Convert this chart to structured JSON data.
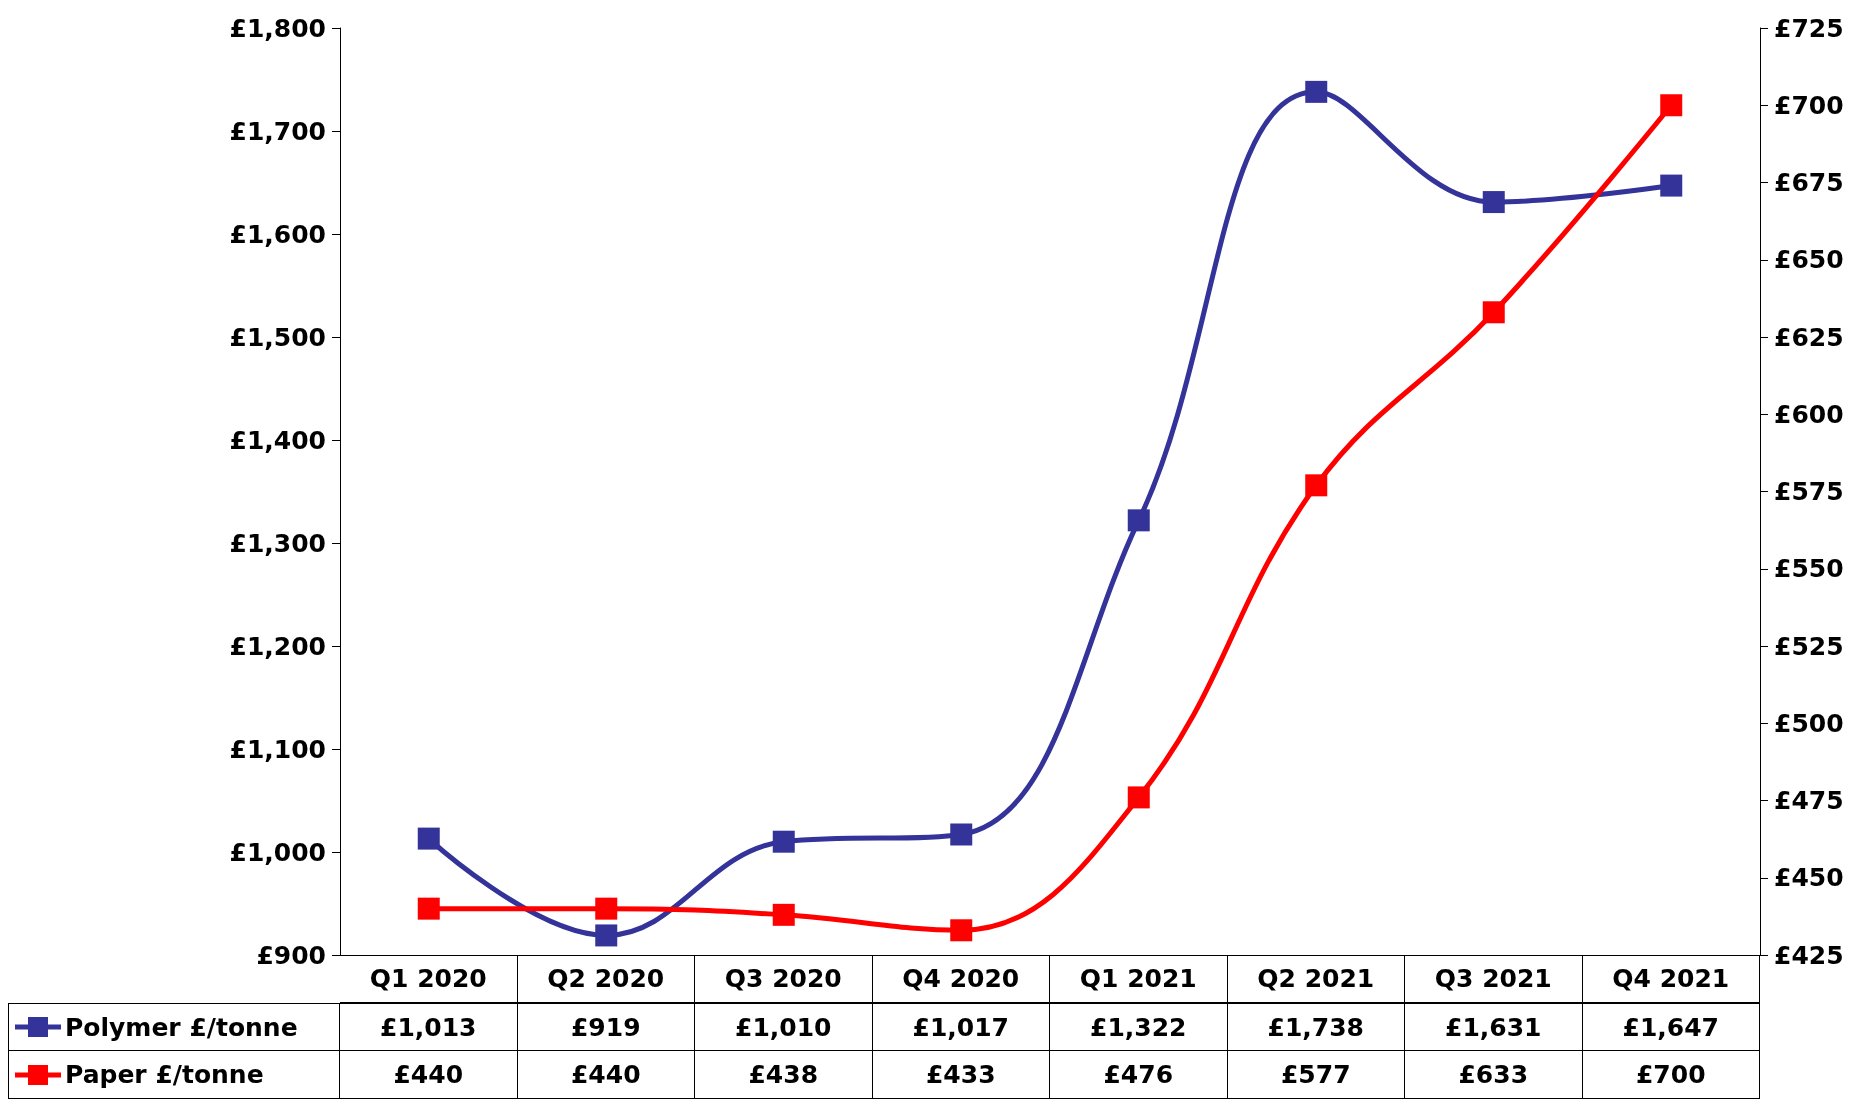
{
  "chart_data": {
    "type": "line",
    "categories": [
      "Q1 2020",
      "Q2 2020",
      "Q3 2020",
      "Q4 2020",
      "Q1 2021",
      "Q2 2021",
      "Q3 2021",
      "Q4 2021"
    ],
    "series": [
      {
        "name": "Polymer £/tonne",
        "color": "#333399",
        "values": [
          1013,
          919,
          1010,
          1017,
          1322,
          1738,
          1631,
          1647
        ],
        "value_labels": [
          "£1,013",
          "£919",
          "£1,010",
          "£1,017",
          "£1,322",
          "£1,738",
          "£1,631",
          "£1,647"
        ]
      },
      {
        "name": "Paper £/tonne",
        "color": "#ff0000",
        "axis": "y2",
        "values": [
          440,
          440,
          438,
          433,
          476,
          577,
          633,
          700
        ],
        "value_labels": [
          "£440",
          "£440",
          "£438",
          "£433",
          "£476",
          "£577",
          "£633",
          "£700"
        ]
      }
    ],
    "ylim": [
      900,
      1800
    ],
    "yticks": [
      {
        "value": 900,
        "label": "£900"
      },
      {
        "value": 1000,
        "label": "£1,000"
      },
      {
        "value": 1100,
        "label": "£1,100"
      },
      {
        "value": 1200,
        "label": "£1,200"
      },
      {
        "value": 1300,
        "label": "£1,300"
      },
      {
        "value": 1400,
        "label": "£1,400"
      },
      {
        "value": 1500,
        "label": "£1,500"
      },
      {
        "value": 1600,
        "label": "£1,600"
      },
      {
        "value": 1700,
        "label": "£1,700"
      },
      {
        "value": 1800,
        "label": "£1,800"
      }
    ],
    "y2lim": [
      425,
      725
    ],
    "y2ticks": [
      {
        "value": 425,
        "label": "£425"
      },
      {
        "value": 450,
        "label": "£450"
      },
      {
        "value": 475,
        "label": "£475"
      },
      {
        "value": 500,
        "label": "£500"
      },
      {
        "value": 525,
        "label": "£525"
      },
      {
        "value": 550,
        "label": "£550"
      },
      {
        "value": 575,
        "label": "£575"
      },
      {
        "value": 600,
        "label": "£600"
      },
      {
        "value": 625,
        "label": "£625"
      },
      {
        "value": 650,
        "label": "£650"
      },
      {
        "value": 675,
        "label": "£675"
      },
      {
        "value": 700,
        "label": "£700"
      },
      {
        "value": 725,
        "label": "£725"
      }
    ],
    "grid": false,
    "legend": "bottom left",
    "marker": "square",
    "line_style": "solid"
  }
}
